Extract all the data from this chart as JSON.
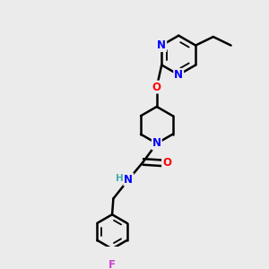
{
  "background_color": "#ebebeb",
  "bond_color": "#000000",
  "nitrogen_color": "#0000ff",
  "oxygen_color": "#ff0000",
  "fluorine_color": "#cc44cc",
  "hydrogen_color": "#44aaaa",
  "bond_width": 1.8,
  "figsize": [
    3.0,
    3.0
  ],
  "dpi": 100,
  "xlim": [
    0.0,
    10.0
  ],
  "ylim": [
    0.0,
    10.0
  ]
}
